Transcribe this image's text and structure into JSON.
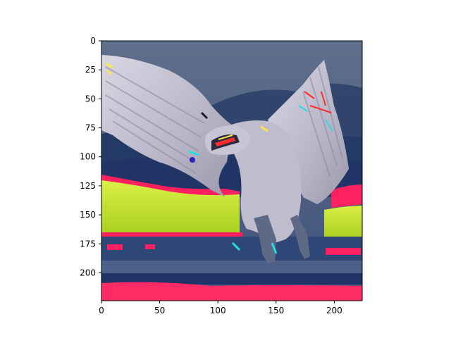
{
  "figure": {
    "x_axis": {
      "range": [
        0,
        224
      ],
      "ticks": [
        0,
        50,
        100,
        150,
        200
      ],
      "tick_labels": [
        "0",
        "50",
        "100",
        "150",
        "200"
      ]
    },
    "y_axis": {
      "range": [
        0,
        224
      ],
      "inverted": true,
      "ticks": [
        0,
        25,
        50,
        75,
        100,
        125,
        150,
        175,
        200
      ],
      "tick_labels": [
        "0",
        "25",
        "50",
        "75",
        "100",
        "125",
        "150",
        "175",
        "200"
      ]
    },
    "image": {
      "subject": "eagle-icon",
      "colors": {
        "sky_top": "#5d6d8a",
        "cloud_dark": "#2a3f66",
        "yellow_band": "#c6e632",
        "red_band": "#ff1f5c",
        "bird_body": "#b9b7c8",
        "bird_shadow": "#8d8aa0"
      }
    }
  }
}
